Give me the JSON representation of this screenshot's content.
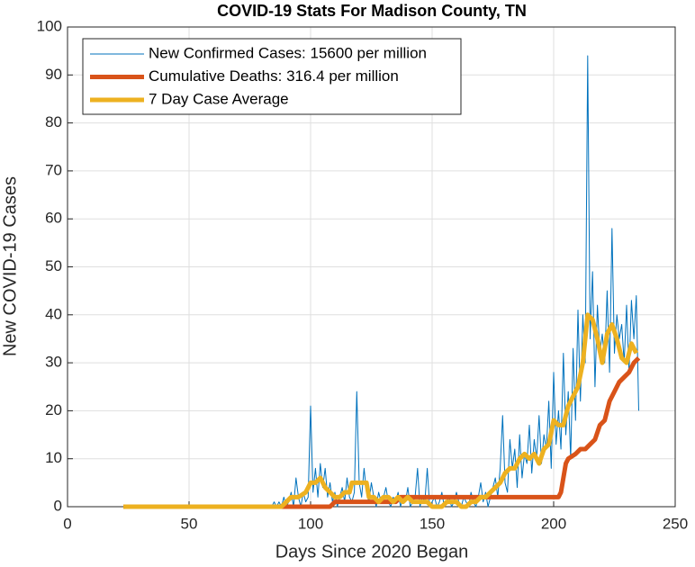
{
  "chart_data": {
    "type": "line",
    "title": "COVID-19 Stats For Madison County, TN",
    "xlabel": "Days Since 2020 Began",
    "ylabel": "New COVID-19 Cases",
    "xlim": [
      0,
      250
    ],
    "ylim": [
      0,
      100
    ],
    "xticks": [
      0,
      50,
      100,
      150,
      200,
      250
    ],
    "yticks": [
      0,
      10,
      20,
      30,
      40,
      50,
      60,
      70,
      80,
      90,
      100
    ],
    "grid": true,
    "legend": "upper-left",
    "series": [
      {
        "name": "New Confirmed Cases: 15600 per million",
        "color": "#0072bd",
        "width": 1,
        "x": [
          23,
          84,
          85,
          86,
          87,
          88,
          89,
          90,
          91,
          92,
          93,
          94,
          95,
          96,
          97,
          98,
          99,
          100,
          101,
          102,
          103,
          104,
          105,
          106,
          107,
          108,
          109,
          110,
          111,
          112,
          113,
          114,
          115,
          116,
          117,
          118,
          119,
          120,
          121,
          122,
          123,
          124,
          125,
          126,
          127,
          128,
          129,
          130,
          131,
          132,
          133,
          134,
          135,
          136,
          137,
          138,
          139,
          140,
          141,
          142,
          143,
          144,
          145,
          146,
          147,
          148,
          149,
          150,
          151,
          152,
          153,
          154,
          155,
          156,
          157,
          158,
          159,
          160,
          161,
          162,
          163,
          164,
          165,
          166,
          167,
          168,
          169,
          170,
          171,
          172,
          173,
          174,
          175,
          176,
          177,
          178,
          179,
          180,
          181,
          182,
          183,
          184,
          185,
          186,
          187,
          188,
          189,
          190,
          191,
          192,
          193,
          194,
          195,
          196,
          197,
          198,
          199,
          200,
          201,
          202,
          203,
          204,
          205,
          206,
          207,
          208,
          209,
          210,
          211,
          212,
          213,
          214,
          215,
          216,
          217,
          218,
          219,
          220,
          221,
          222,
          223,
          224,
          225,
          226,
          227,
          228,
          229,
          230,
          231,
          232,
          233,
          234,
          235
        ],
        "values": [
          0,
          0,
          1,
          0,
          1,
          0,
          2,
          0,
          1,
          3,
          0,
          6,
          2,
          0,
          3,
          1,
          2,
          21,
          3,
          8,
          2,
          9,
          4,
          8,
          2,
          5,
          1,
          3,
          0,
          2,
          4,
          1,
          6,
          2,
          1,
          3,
          24,
          5,
          2,
          8,
          3,
          1,
          5,
          2,
          0,
          3,
          1,
          2,
          4,
          1,
          0,
          2,
          1,
          3,
          0,
          2,
          1,
          4,
          0,
          1,
          2,
          8,
          0,
          2,
          1,
          8,
          0,
          1,
          2,
          0,
          1,
          3,
          0,
          1,
          2,
          0,
          1,
          3,
          1,
          0,
          2,
          1,
          0,
          3,
          1,
          0,
          2,
          5,
          1,
          3,
          0,
          2,
          4,
          6,
          2,
          8,
          19,
          5,
          3,
          14,
          8,
          12,
          4,
          15,
          6,
          11,
          9,
          17,
          7,
          14,
          10,
          19,
          9,
          15,
          12,
          22,
          8,
          28,
          13,
          20,
          12,
          32,
          15,
          24,
          10,
          33,
          18,
          41,
          22,
          40,
          30,
          94,
          35,
          49,
          25,
          42,
          32,
          36,
          30,
          45,
          28,
          58,
          32,
          40,
          35,
          38,
          30,
          42,
          28,
          43,
          35,
          44,
          20
        ]
      },
      {
        "name": "Cumulative Deaths: 316.4 per million",
        "color": "#d95319",
        "width": 5,
        "x": [
          23,
          108,
          110,
          135,
          137,
          202,
          203,
          204,
          205,
          206,
          209,
          211,
          213,
          215,
          217,
          219,
          221,
          223,
          225,
          227,
          229,
          231,
          233,
          235
        ],
        "values": [
          0,
          0,
          1,
          1,
          2,
          2,
          3,
          6,
          9,
          10,
          11,
          12,
          12,
          13,
          14,
          17,
          18,
          22,
          24,
          26,
          27,
          28,
          30,
          31
        ]
      },
      {
        "name": "7 Day Case Average",
        "color": "#edb120",
        "width": 5,
        "x": [
          23,
          88,
          90,
          92,
          95,
          98,
          100,
          102,
          104,
          106,
          108,
          110,
          112,
          114,
          116,
          117,
          119,
          121,
          123,
          124,
          126,
          128,
          130,
          132,
          134,
          136,
          138,
          140,
          142,
          144,
          146,
          148,
          150,
          152,
          154,
          156,
          158,
          160,
          162,
          164,
          166,
          168,
          170,
          172,
          174,
          176,
          178,
          180,
          182,
          184,
          186,
          188,
          190,
          192,
          194,
          196,
          198,
          200,
          202,
          204,
          206,
          208,
          210,
          212,
          214,
          216,
          218,
          220,
          222,
          224,
          226,
          228,
          230,
          232,
          234
        ],
        "values": [
          0,
          0,
          1,
          2,
          2,
          3,
          5,
          5,
          6,
          4,
          3,
          2,
          2,
          3,
          3,
          5,
          5,
          5,
          5,
          2,
          2,
          1,
          2,
          2,
          1,
          2,
          1,
          2,
          1,
          1,
          1,
          1,
          0,
          0,
          0,
          1,
          1,
          1,
          0,
          0,
          1,
          1,
          2,
          2,
          3,
          4,
          5,
          7,
          8,
          8,
          10,
          11,
          10,
          11,
          9,
          12,
          13,
          18,
          17,
          17,
          21,
          23,
          25,
          30,
          40,
          39,
          35,
          30,
          36,
          38,
          35,
          31,
          30,
          34,
          32
        ]
      }
    ]
  }
}
